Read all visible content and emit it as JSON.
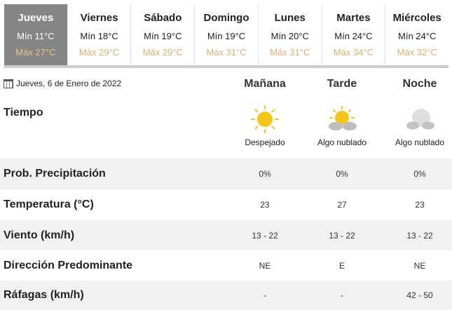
{
  "days": [
    {
      "day": "Jueves",
      "min": "Mín 11°C",
      "max": "Máx 27°C",
      "active": true
    },
    {
      "day": "Viernes",
      "min": "Mín 18°C",
      "max": "Máx 29°C"
    },
    {
      "day": "Sábado",
      "min": "Mín 19°C",
      "max": "Máx 29°C"
    },
    {
      "day": "Domingo",
      "min": "Mín 19°C",
      "max": "Máx 31°C"
    },
    {
      "day": "Lunes",
      "min": "Mín 20°C",
      "max": "Máx 31°C"
    },
    {
      "day": "Martes",
      "min": "Mín 24°C",
      "max": "Máx 34°C"
    },
    {
      "day": "Miércoles",
      "min": "Mín 24°C",
      "max": "Máx 32°C"
    }
  ],
  "date": "Jueves, 6 de Enero de 2022",
  "periods": [
    "Mañana",
    "Tarde",
    "Noche"
  ],
  "weather": {
    "label": "Tiempo",
    "items": [
      {
        "icon": "sun-icon",
        "text": "Despejado"
      },
      {
        "icon": "partly-cloudy-sun-icon",
        "text": "Algo nublado"
      },
      {
        "icon": "partly-cloudy-moon-icon",
        "text": "Algo nublado"
      }
    ]
  },
  "rows": [
    {
      "label": "Prob. Precipitación",
      "values": [
        "0%",
        "0%",
        "0%"
      ]
    },
    {
      "label": "Temperatura (°C)",
      "values": [
        "23",
        "27",
        "23"
      ]
    },
    {
      "label": "Viento (km/h)",
      "values": [
        "13 - 22",
        "13 - 22",
        "13 - 22"
      ]
    },
    {
      "label": "Dirección Predominante",
      "values": [
        "NE",
        "E",
        "NE"
      ]
    },
    {
      "label": "Ráfagas (km/h)",
      "values": [
        "-",
        "-",
        "42 - 50"
      ]
    }
  ],
  "colors": {
    "active_tab": "#858585",
    "max_temp": "#d9b071",
    "sun": "#f5c518",
    "stripe": "#f1f1f1"
  }
}
